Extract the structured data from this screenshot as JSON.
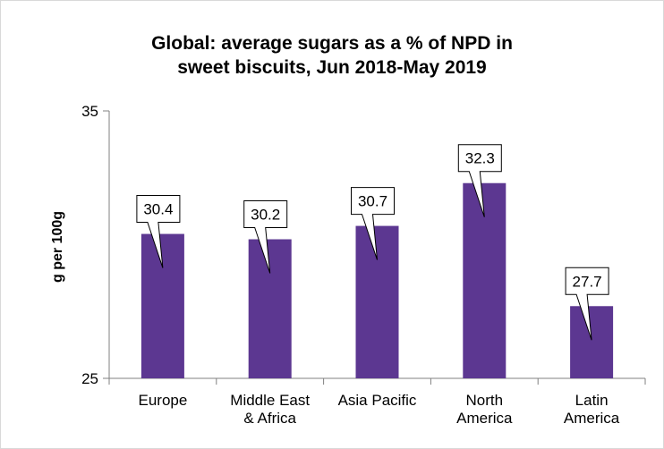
{
  "chart_data": {
    "type": "bar",
    "title_lines": [
      "Global: average sugars as a % of NPD in",
      "sweet biscuits, Jun 2018-May 2019"
    ],
    "ylabel": "g per 100g",
    "xlabel": "",
    "ylim": [
      25,
      35
    ],
    "yticks": [
      "35",
      "25"
    ],
    "categories": [
      [
        "Europe"
      ],
      [
        "Middle East",
        "& Africa"
      ],
      [
        "Asia Pacific"
      ],
      [
        "North",
        "America"
      ],
      [
        "Latin",
        "America"
      ]
    ],
    "values": [
      30.4,
      30.2,
      30.7,
      32.3,
      27.7
    ],
    "data_labels": [
      "30.4",
      "30.2",
      "30.7",
      "32.3",
      "27.7"
    ],
    "bar_color": "#5c3791",
    "axis_color": "#808080",
    "callout_border": "#000000",
    "gridlines": false,
    "legend": "none"
  }
}
